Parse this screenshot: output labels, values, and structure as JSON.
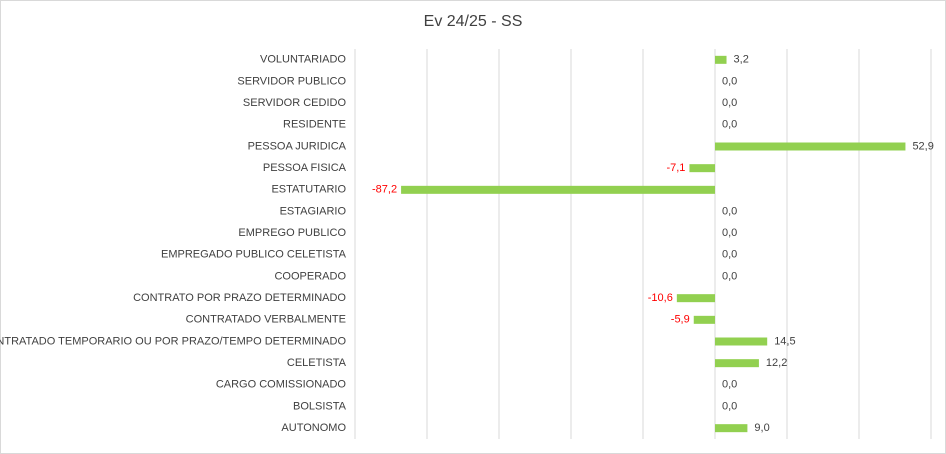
{
  "chart_data": {
    "type": "bar",
    "orientation": "horizontal",
    "title": "Ev 24/25 - SS",
    "categories": [
      "VOLUNTARIADO",
      "SERVIDOR PUBLICO",
      "SERVIDOR CEDIDO",
      "RESIDENTE",
      "PESSOA JURIDICA",
      "PESSOA FISICA",
      "ESTATUTARIO",
      "ESTAGIARIO",
      "EMPREGO PUBLICO",
      "EMPREGADO PUBLICO CELETISTA",
      "COOPERADO",
      "CONTRATO POR PRAZO DETERMINADO",
      "CONTRATADO VERBALMENTE",
      "CONTRATADO TEMPORARIO OU POR PRAZO/TEMPO DETERMINADO",
      "CELETISTA",
      "CARGO COMISSIONADO",
      "BOLSISTA",
      "AUTONOMO"
    ],
    "values": [
      3.2,
      0,
      0,
      0,
      52.9,
      -7.1,
      -87.2,
      0,
      0,
      0,
      0,
      -10.6,
      -5.9,
      14.5,
      12.2,
      0,
      0,
      9.0
    ],
    "value_labels": [
      "3,2",
      "0,0",
      "0,0",
      "0,0",
      "52,9",
      "-7,1",
      "-87,2",
      "0,0",
      "0,0",
      "0,0",
      "0,0",
      "-10,6",
      "-5,9",
      "14,5",
      "12,2",
      "0,0",
      "0,0",
      "9,0"
    ],
    "color": "#92d050",
    "negative_label_color": "#ff0000",
    "xlim": [
      -100,
      60
    ],
    "xticks": [
      -100,
      -80,
      -60,
      -40,
      -20,
      0,
      20,
      40,
      60
    ],
    "grid": true
  }
}
